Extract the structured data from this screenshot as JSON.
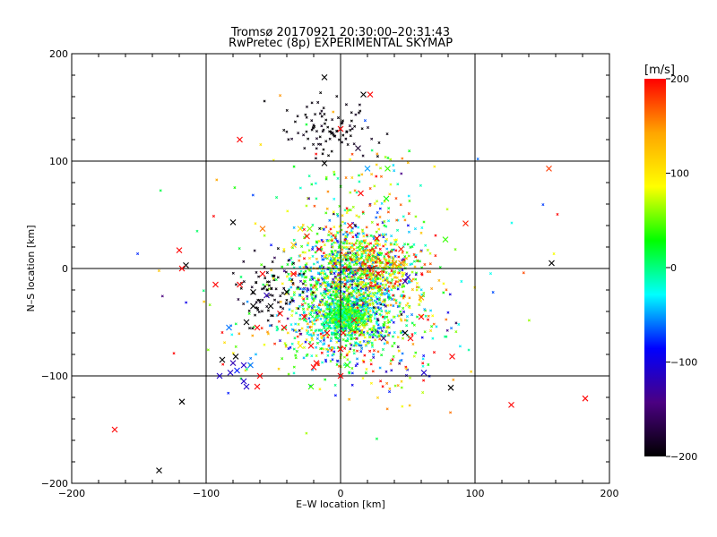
{
  "chart_data": {
    "type": "scatter",
    "title": "Tromsø 20170921 20:30:00–20:31:43",
    "subtitle": "RwPretec (8p) EXPERIMENTAL SKYMAP",
    "xlabel": "E–W location [km]",
    "ylabel": "N–S location [km]",
    "xlim": [
      -200,
      200
    ],
    "ylim": [
      -200,
      200
    ],
    "x_ticks": [
      -200,
      -100,
      0,
      100,
      200
    ],
    "y_ticks": [
      -200,
      -100,
      0,
      100,
      200
    ],
    "x_tick_labels": [
      "−200",
      "−100",
      "0",
      "100",
      "200"
    ],
    "y_tick_labels": [
      "−200",
      "−100",
      "0",
      "100",
      "200"
    ],
    "grid": true,
    "colorbar": {
      "label": "[m/s]",
      "range": [
        -200,
        200
      ],
      "ticks": [
        200,
        100,
        0,
        -100,
        -200
      ],
      "tick_labels": [
        "200",
        "100",
        "0",
        "−100",
        "−200"
      ],
      "colors": [
        "#000000",
        "#4b0082",
        "#0000ff",
        "#00ffff",
        "#00ff00",
        "#ffff00",
        "#ffa500",
        "#ff0000"
      ]
    },
    "cross_markers": [
      {
        "x": -12,
        "y": 178,
        "v": -200
      },
      {
        "x": 17,
        "y": 162,
        "v": -200
      },
      {
        "x": 22,
        "y": 162,
        "v": 200
      },
      {
        "x": 0,
        "y": 130,
        "v": 200
      },
      {
        "x": -75,
        "y": 120,
        "v": 200
      },
      {
        "x": -12,
        "y": 98,
        "v": -200
      },
      {
        "x": 20,
        "y": 93,
        "v": -50
      },
      {
        "x": 35,
        "y": 93,
        "v": 40
      },
      {
        "x": 155,
        "y": 93,
        "v": 180
      },
      {
        "x": 13,
        "y": 112,
        "v": -180
      },
      {
        "x": 15,
        "y": 70,
        "v": 200
      },
      {
        "x": 34,
        "y": 65,
        "v": 30
      },
      {
        "x": 93,
        "y": 42,
        "v": 190
      },
      {
        "x": 7,
        "y": 40,
        "v": 200
      },
      {
        "x": -80,
        "y": 43,
        "v": -200
      },
      {
        "x": -58,
        "y": 37,
        "v": 160
      },
      {
        "x": -30,
        "y": 37,
        "v": 100
      },
      {
        "x": -23,
        "y": 37,
        "v": 60
      },
      {
        "x": 78,
        "y": 27,
        "v": 40
      },
      {
        "x": -25,
        "y": 30,
        "v": 190
      },
      {
        "x": -35,
        "y": 22,
        "v": 120
      },
      {
        "x": 27,
        "y": 28,
        "v": 200
      },
      {
        "x": 45,
        "y": 18,
        "v": 190
      },
      {
        "x": -120,
        "y": 17,
        "v": 200
      },
      {
        "x": -16,
        "y": 18,
        "v": 200
      },
      {
        "x": -115,
        "y": 3,
        "v": -200
      },
      {
        "x": -118,
        "y": 0,
        "v": 200
      },
      {
        "x": 40,
        "y": 5,
        "v": 150
      },
      {
        "x": 45,
        "y": 5,
        "v": 150
      },
      {
        "x": 157,
        "y": 5,
        "v": -200
      },
      {
        "x": -58,
        "y": -5,
        "v": 200
      },
      {
        "x": -35,
        "y": -5,
        "v": 200
      },
      {
        "x": 28,
        "y": -5,
        "v": 200
      },
      {
        "x": -93,
        "y": -15,
        "v": 200
      },
      {
        "x": -75,
        "y": -15,
        "v": 200
      },
      {
        "x": -65,
        "y": -22,
        "v": -200
      },
      {
        "x": -55,
        "y": -25,
        "v": -120
      },
      {
        "x": -40,
        "y": -22,
        "v": -200
      },
      {
        "x": 50,
        "y": -8,
        "v": -100
      },
      {
        "x": 48,
        "y": -12,
        "v": -120
      },
      {
        "x": 60,
        "y": -27,
        "v": 150
      },
      {
        "x": -65,
        "y": -35,
        "v": -200
      },
      {
        "x": -52,
        "y": -35,
        "v": -200
      },
      {
        "x": -45,
        "y": -42,
        "v": 200
      },
      {
        "x": -27,
        "y": -45,
        "v": 200
      },
      {
        "x": 10,
        "y": -48,
        "v": 200
      },
      {
        "x": 60,
        "y": -45,
        "v": 200
      },
      {
        "x": -70,
        "y": -50,
        "v": -200
      },
      {
        "x": -62,
        "y": -55,
        "v": 200
      },
      {
        "x": -42,
        "y": -55,
        "v": 200
      },
      {
        "x": -83,
        "y": -55,
        "v": -60
      },
      {
        "x": 48,
        "y": -60,
        "v": -200
      },
      {
        "x": 52,
        "y": -65,
        "v": 200
      },
      {
        "x": 32,
        "y": -65,
        "v": -150
      },
      {
        "x": -10,
        "y": -60,
        "v": 200
      },
      {
        "x": 2,
        "y": -60,
        "v": 200
      },
      {
        "x": -30,
        "y": -72,
        "v": 100
      },
      {
        "x": 0,
        "y": -75,
        "v": 200
      },
      {
        "x": -22,
        "y": -72,
        "v": 200
      },
      {
        "x": 5,
        "y": -90,
        "v": 40
      },
      {
        "x": 83,
        "y": -82,
        "v": 200
      },
      {
        "x": -88,
        "y": -85,
        "v": -200
      },
      {
        "x": -78,
        "y": -82,
        "v": -200
      },
      {
        "x": -80,
        "y": -88,
        "v": -120
      },
      {
        "x": -72,
        "y": -90,
        "v": -110
      },
      {
        "x": -67,
        "y": -90,
        "v": -60
      },
      {
        "x": -77,
        "y": -95,
        "v": -80
      },
      {
        "x": -82,
        "y": -97,
        "v": -110
      },
      {
        "x": -90,
        "y": -100,
        "v": -110
      },
      {
        "x": -60,
        "y": -100,
        "v": 200
      },
      {
        "x": -72,
        "y": -105,
        "v": -110
      },
      {
        "x": -70,
        "y": -110,
        "v": -110
      },
      {
        "x": -62,
        "y": -110,
        "v": 200
      },
      {
        "x": -20,
        "y": -92,
        "v": 200
      },
      {
        "x": -18,
        "y": -88,
        "v": 200
      },
      {
        "x": 62,
        "y": -97,
        "v": -110
      },
      {
        "x": 0,
        "y": -100,
        "v": 200
      },
      {
        "x": -22,
        "y": -110,
        "v": 40
      },
      {
        "x": -118,
        "y": -124,
        "v": -200
      },
      {
        "x": 82,
        "y": -111,
        "v": -200
      },
      {
        "x": 127,
        "y": -127,
        "v": 200
      },
      {
        "x": 182,
        "y": -121,
        "v": 200
      },
      {
        "x": -168,
        "y": -150,
        "v": 200
      },
      {
        "x": -135,
        "y": -188,
        "v": -200
      }
    ]
  }
}
